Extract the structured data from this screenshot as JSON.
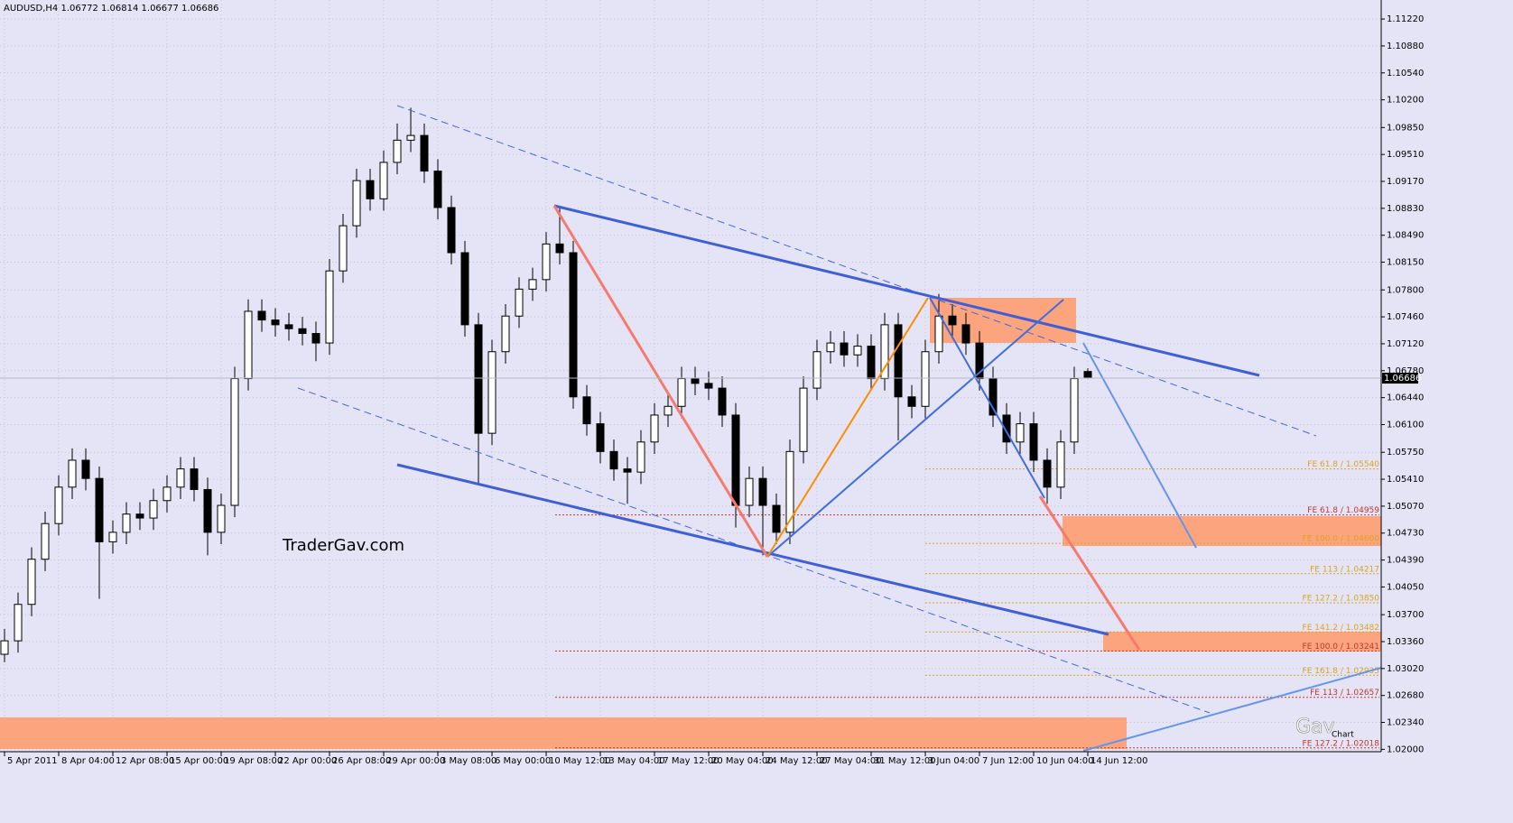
{
  "chart_data": {
    "type": "candlestick",
    "title": "AUDUSD,H4  1.06772 1.06814 1.06677 1.06686",
    "watermark": "TraderGav.com",
    "logo": "Gav",
    "logo_sub": "Chart",
    "categories": [
      "5 Apr 2011",
      null,
      null,
      null,
      "8 Apr 04:00",
      null,
      null,
      null,
      "12 Apr 08:00",
      null,
      null,
      null,
      "15 Apr 00:00",
      null,
      null,
      null,
      "19 Apr 08:00",
      null,
      null,
      null,
      "22 Apr 00:00",
      null,
      null,
      null,
      "26 Apr 08:00",
      null,
      null,
      null,
      "29 Apr 00:00",
      null,
      null,
      null,
      "3 May 08:00",
      null,
      null,
      null,
      "6 May 00:00",
      null,
      null,
      null,
      "10 May 12:00",
      null,
      null,
      null,
      "13 May 04:00",
      null,
      null,
      null,
      "17 May 12:00",
      null,
      null,
      null,
      "20 May 04:00",
      null,
      null,
      null,
      "24 May 12:00",
      null,
      null,
      null,
      "27 May 04:00",
      null,
      null,
      null,
      "31 May 12:00",
      null,
      null,
      null,
      "3 Jun 04:00",
      null,
      null,
      null,
      "7 Jun 12:00",
      null,
      null,
      null,
      "10 Jun 04:00",
      null,
      null,
      null,
      "14 Jun 12:00"
    ],
    "open": [
      1.032,
      1.0337,
      1.0383,
      1.044,
      1.0485,
      1.0531,
      1.0565,
      1.0542,
      1.0462,
      1.0474,
      1.0497,
      1.0492,
      1.0514,
      1.0531,
      1.0554,
      1.0528,
      1.0474,
      1.0508,
      1.0668,
      1.0753,
      1.0742,
      1.0736,
      1.0731,
      1.0725,
      1.0713,
      1.0804,
      1.0861,
      1.0918,
      1.0895,
      1.0941,
      1.0969,
      1.0975,
      1.093,
      1.0884,
      1.0827,
      1.0736,
      1.0599,
      1.0702,
      1.0747,
      1.0781,
      1.0793,
      1.0838,
      1.0827,
      1.0645,
      1.0611,
      1.0576,
      1.0554,
      1.055,
      1.0588,
      1.0622,
      1.0633,
      1.0668,
      1.0662,
      1.0656,
      1.0622,
      1.0508,
      1.0542,
      1.0508,
      1.0474,
      1.0576,
      1.0656,
      1.0702,
      1.0713,
      1.0698,
      1.0709,
      1.0668,
      1.0736,
      1.0645,
      1.0633,
      1.0702,
      1.0747,
      1.0736,
      1.0713,
      1.0668,
      1.0622,
      1.0588,
      1.0611,
      1.0565,
      1.0531,
      1.0588,
      1.0677
    ],
    "high": [
      1.0352,
      1.0398,
      1.0455,
      1.05,
      1.0546,
      1.058,
      1.058,
      1.0557,
      1.0489,
      1.0512,
      1.0512,
      1.0529,
      1.0546,
      1.0569,
      1.0569,
      1.0543,
      1.0523,
      1.0683,
      1.0768,
      1.0768,
      1.0757,
      1.0751,
      1.0746,
      1.074,
      1.0819,
      1.0876,
      1.0933,
      1.0933,
      1.0956,
      1.099,
      1.101,
      1.099,
      1.0945,
      1.0899,
      1.0842,
      1.0751,
      1.0717,
      1.0762,
      1.0796,
      1.0808,
      1.0853,
      1.0885,
      1.0842,
      1.066,
      1.0626,
      1.0591,
      1.0569,
      1.0603,
      1.0637,
      1.0648,
      1.0683,
      1.0683,
      1.0677,
      1.0671,
      1.0637,
      1.0557,
      1.0557,
      1.0523,
      1.0591,
      1.0671,
      1.0717,
      1.0728,
      1.0728,
      1.0724,
      1.0724,
      1.0751,
      1.0751,
      1.066,
      1.0717,
      1.0775,
      1.0762,
      1.0751,
      1.0728,
      1.0683,
      1.0637,
      1.0626,
      1.0626,
      1.058,
      1.0603,
      1.0683,
      1.0681
    ],
    "low": [
      1.031,
      1.0322,
      1.0368,
      1.0425,
      1.047,
      1.0516,
      1.0527,
      1.039,
      1.0447,
      1.0459,
      1.0477,
      1.0477,
      1.0499,
      1.0516,
      1.0513,
      1.0445,
      1.0459,
      1.0493,
      1.0653,
      1.0727,
      1.0721,
      1.0716,
      1.071,
      1.069,
      1.0698,
      1.0789,
      1.0846,
      1.088,
      1.088,
      1.0926,
      1.0954,
      1.0915,
      1.0869,
      1.0812,
      1.0721,
      1.0535,
      1.0584,
      1.0687,
      1.0732,
      1.0766,
      1.0778,
      1.0812,
      1.063,
      1.0596,
      1.0561,
      1.0539,
      1.051,
      1.0535,
      1.0573,
      1.0607,
      1.0618,
      1.0647,
      1.0641,
      1.0607,
      1.048,
      1.0493,
      1.0445,
      1.0459,
      1.0459,
      1.0561,
      1.0641,
      1.0687,
      1.0683,
      1.0683,
      1.0653,
      1.0653,
      1.059,
      1.0618,
      1.0618,
      1.0687,
      1.0721,
      1.0698,
      1.0653,
      1.0607,
      1.0573,
      1.0573,
      1.055,
      1.051,
      1.0516,
      1.0573,
      1.0668
    ],
    "close": [
      1.0337,
      1.0383,
      1.044,
      1.0485,
      1.0531,
      1.0565,
      1.0542,
      1.0462,
      1.0474,
      1.0497,
      1.0492,
      1.0514,
      1.0531,
      1.0554,
      1.0528,
      1.0474,
      1.0508,
      1.0668,
      1.0753,
      1.0742,
      1.0736,
      1.0731,
      1.0725,
      1.0713,
      1.0804,
      1.0861,
      1.0918,
      1.0895,
      1.0941,
      1.0969,
      1.0975,
      1.093,
      1.0884,
      1.0827,
      1.0736,
      1.0599,
      1.0702,
      1.0747,
      1.0781,
      1.0793,
      1.0838,
      1.0827,
      1.0645,
      1.0611,
      1.0576,
      1.0554,
      1.055,
      1.0588,
      1.0622,
      1.0633,
      1.0668,
      1.0662,
      1.0656,
      1.0622,
      1.0508,
      1.0542,
      1.0508,
      1.0474,
      1.0576,
      1.0656,
      1.0702,
      1.0713,
      1.0698,
      1.0709,
      1.0668,
      1.0736,
      1.0645,
      1.0633,
      1.0702,
      1.0747,
      1.0736,
      1.0713,
      1.0668,
      1.0622,
      1.0588,
      1.0611,
      1.0565,
      1.0531,
      1.0588,
      1.0668,
      1.0669
    ],
    "up_color": "#ffffff",
    "down_color": "#000000",
    "current_price": 1.06686,
    "ylim": [
      1.0197,
      1.1146
    ],
    "yticks": [
      {
        "value": 1.02,
        "label": "1.02000"
      },
      {
        "value": 1.0234,
        "label": "1.02340"
      },
      {
        "value": 1.0268,
        "label": "1.02680"
      },
      {
        "value": 1.0302,
        "label": "1.03020"
      },
      {
        "value": 1.0336,
        "label": "1.03360"
      },
      {
        "value": 1.037,
        "label": "1.03700"
      },
      {
        "value": 1.0405,
        "label": "1.04050"
      },
      {
        "value": 1.0439,
        "label": "1.04390"
      },
      {
        "value": 1.0473,
        "label": "1.04730"
      },
      {
        "value": 1.0507,
        "label": "1.05070"
      },
      {
        "value": 1.0541,
        "label": "1.05410"
      },
      {
        "value": 1.0575,
        "label": "1.05750"
      },
      {
        "value": 1.061,
        "label": "1.06100"
      },
      {
        "value": 1.0644,
        "label": "1.06440"
      },
      {
        "value": 1.0678,
        "label": "1.06780"
      },
      {
        "value": 1.0712,
        "label": "1.07120"
      },
      {
        "value": 1.0746,
        "label": "1.07460"
      },
      {
        "value": 1.078,
        "label": "1.07800"
      },
      {
        "value": 1.0815,
        "label": "1.08150"
      },
      {
        "value": 1.0849,
        "label": "1.08490"
      },
      {
        "value": 1.0883,
        "label": "1.08830"
      },
      {
        "value": 1.0917,
        "label": "1.09170"
      },
      {
        "value": 1.0951,
        "label": "1.09510"
      },
      {
        "value": 1.0985,
        "label": "1.09850"
      },
      {
        "value": 1.102,
        "label": "1.10200"
      },
      {
        "value": 1.1054,
        "label": "1.10540"
      },
      {
        "value": 1.1088,
        "label": "1.10880"
      },
      {
        "value": 1.1122,
        "label": "1.11220"
      }
    ],
    "grid": true,
    "fe_levels": [
      {
        "label": "FE 61.8 / 1.05540",
        "value": 1.0554,
        "color": "#daa520"
      },
      {
        "label": "FE 61.8 / 1.04959",
        "value": 1.04959,
        "color": "#c0392b"
      },
      {
        "label": "FE 100.0 / 1.04600",
        "value": 1.046,
        "color": "#daa520"
      },
      {
        "label": "FE 113 / 1.04217",
        "value": 1.04217,
        "color": "#daa520"
      },
      {
        "label": "FE 127.2 / 1.03850",
        "value": 1.0385,
        "color": "#daa520"
      },
      {
        "label": "FE 141.2 / 1.03482",
        "value": 1.03482,
        "color": "#daa520"
      },
      {
        "label": "FE 100.0 / 1.03241",
        "value": 1.03241,
        "color": "#c0392b"
      },
      {
        "label": "FE 161.8 / 1.02935",
        "value": 1.02935,
        "color": "#daa520"
      },
      {
        "label": "FE 113 / 1.02657",
        "value": 1.02657,
        "color": "#c0392b"
      },
      {
        "label": "FE 127.2 / 1.02018",
        "value": 1.02018,
        "color": "#c0392b"
      }
    ]
  }
}
